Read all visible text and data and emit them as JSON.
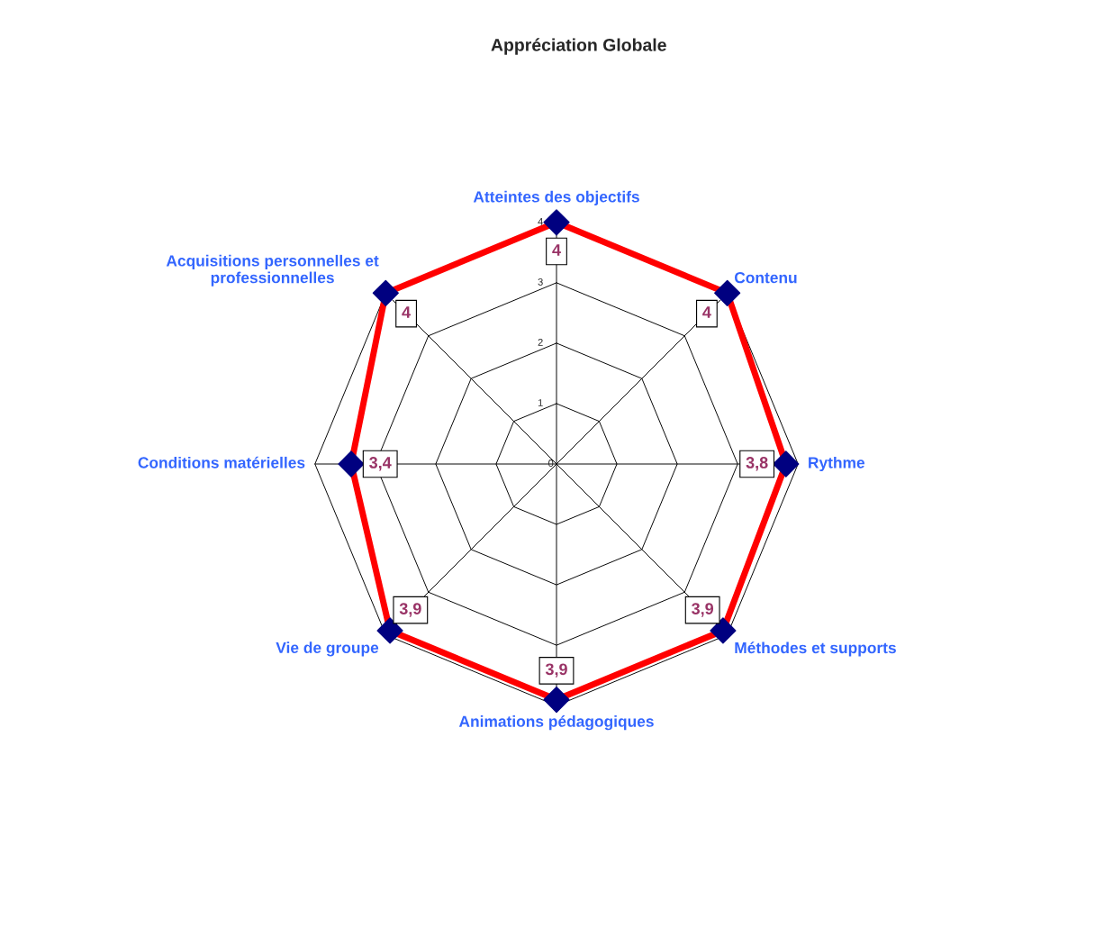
{
  "chart_data": {
    "type": "radar",
    "title": "Appréciation Globale",
    "categories": [
      "Atteintes des objectifs",
      "Contenu",
      "Rythme",
      "Méthodes et supports",
      "Animations pédagogiques",
      "Vie de groupe",
      "Conditions matérielles",
      "Acquisitions personnelles et\nprofessionnelles"
    ],
    "series": [
      {
        "color": "#ff0000",
        "values": [
          4,
          4,
          3.8,
          3.9,
          3.9,
          3.9,
          3.4,
          4
        ],
        "value_labels": [
          "4",
          "4",
          "3,8",
          "3,9",
          "3,9",
          "3,9",
          "3,4",
          "4"
        ]
      }
    ],
    "ylim": [
      0,
      4
    ],
    "yticks": [
      0,
      1,
      2,
      3,
      4
    ],
    "marker": "diamond",
    "line_style": "solid",
    "legend": false,
    "grid": true
  }
}
